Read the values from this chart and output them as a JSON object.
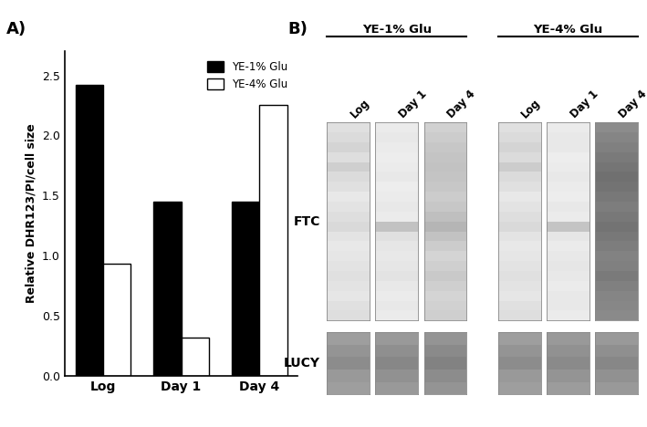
{
  "bar_categories": [
    "Log",
    "Day 1",
    "Day 4"
  ],
  "bar_values_black": [
    2.42,
    1.45,
    1.45
  ],
  "bar_values_white": [
    0.93,
    0.32,
    2.25
  ],
  "bar_color_black": "#000000",
  "bar_color_white": "#ffffff",
  "bar_width": 0.35,
  "ylim": [
    0,
    2.7
  ],
  "yticks": [
    0.0,
    0.5,
    1.0,
    1.5,
    2.0,
    2.5
  ],
  "ylabel": "Relative DHR123/PI/cell size",
  "legend_labels": [
    "YE-1% Glu",
    "YE-4% Glu"
  ],
  "panel_a_label": "A)",
  "panel_b_label": "B)",
  "group1_label": "YE-1% Glu",
  "group2_label": "YE-4% Glu",
  "col_labels": [
    "Log",
    "Day 1",
    "Day 4"
  ],
  "ftc_label": "FTC",
  "lucy_label": "LUCY",
  "ftc_lanes": [
    [
      0.88,
      0.86,
      0.83,
      0.87,
      0.81,
      0.86,
      0.88,
      0.91,
      0.89,
      0.87,
      0.85,
      0.89,
      0.91,
      0.9,
      0.89,
      0.88,
      0.89,
      0.9,
      0.88,
      0.87
    ],
    [
      0.92,
      0.91,
      0.92,
      0.93,
      0.92,
      0.91,
      0.93,
      0.92,
      0.91,
      0.92,
      0.76,
      0.88,
      0.9,
      0.91,
      0.9,
      0.89,
      0.91,
      0.92,
      0.91,
      0.92
    ],
    [
      0.82,
      0.8,
      0.78,
      0.77,
      0.76,
      0.77,
      0.78,
      0.8,
      0.78,
      0.75,
      0.71,
      0.76,
      0.8,
      0.83,
      0.81,
      0.79,
      0.81,
      0.83,
      0.82,
      0.81
    ],
    [
      0.88,
      0.86,
      0.83,
      0.86,
      0.8,
      0.86,
      0.88,
      0.91,
      0.89,
      0.87,
      0.85,
      0.89,
      0.91,
      0.9,
      0.89,
      0.88,
      0.89,
      0.9,
      0.88,
      0.87
    ],
    [
      0.92,
      0.91,
      0.91,
      0.93,
      0.92,
      0.91,
      0.92,
      0.93,
      0.91,
      0.92,
      0.77,
      0.9,
      0.92,
      0.91,
      0.9,
      0.91,
      0.92,
      0.91,
      0.91,
      0.92
    ],
    [
      0.55,
      0.52,
      0.5,
      0.48,
      0.46,
      0.44,
      0.45,
      0.47,
      0.49,
      0.47,
      0.45,
      0.47,
      0.49,
      0.51,
      0.5,
      0.48,
      0.5,
      0.52,
      0.53,
      0.54
    ]
  ],
  "lucy_lanes": [
    [
      0.62,
      0.58,
      0.55,
      0.6,
      0.62
    ],
    [
      0.6,
      0.56,
      0.53,
      0.57,
      0.6
    ],
    [
      0.58,
      0.54,
      0.51,
      0.55,
      0.58
    ],
    [
      0.62,
      0.58,
      0.55,
      0.6,
      0.62
    ],
    [
      0.6,
      0.57,
      0.54,
      0.58,
      0.61
    ],
    [
      0.6,
      0.56,
      0.53,
      0.57,
      0.6
    ]
  ],
  "background_color": "#ffffff"
}
